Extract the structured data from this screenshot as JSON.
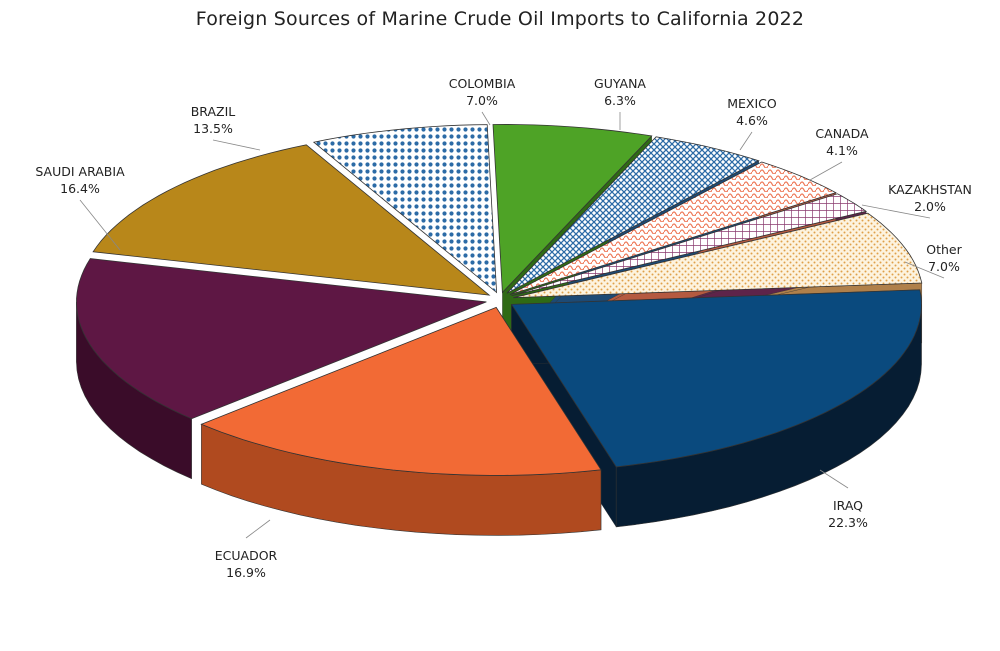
{
  "chart_data": {
    "type": "pie",
    "title": "Foreign Sources of Marine Crude Oil Imports to California 2022",
    "unit": "%",
    "slices": [
      {
        "label": "IRAQ",
        "value": 22.3,
        "value_text": "22.3%",
        "color": "#0a4a7e",
        "side": "#061d33",
        "fill": "solid"
      },
      {
        "label": "ECUADOR",
        "value": 16.9,
        "value_text": "16.9%",
        "color": "#f26a35",
        "side": "#b04a1f",
        "fill": "solid"
      },
      {
        "label": "SAUDI ARABIA",
        "value": 16.4,
        "value_text": "16.4%",
        "color": "#5e1744",
        "side": "#3a0c29",
        "fill": "solid"
      },
      {
        "label": "BRAZIL",
        "value": 13.5,
        "value_text": "13.5%",
        "color": "#b8871a",
        "side": "#7d5a0e",
        "fill": "solid"
      },
      {
        "label": "COLOMBIA",
        "value": 7.0,
        "value_text": "7.0%",
        "color": "#2c6ba6",
        "side": "#1d4a75",
        "fill": "dots"
      },
      {
        "label": "GUYANA",
        "value": 6.3,
        "value_text": "6.3%",
        "color": "#4ea326",
        "side": "#2f6a15",
        "fill": "solid"
      },
      {
        "label": "MEXICO",
        "value": 4.6,
        "value_text": "4.6%",
        "color": "#2c6ba6",
        "side": "#1d4a75",
        "fill": "crosshatch"
      },
      {
        "label": "CANADA",
        "value": 4.1,
        "value_text": "4.1%",
        "color": "#ee7a5a",
        "side": "#b55a40",
        "fill": "wave"
      },
      {
        "label": "KAZAKHSTAN",
        "value": 2.0,
        "value_text": "2.0%",
        "color": "#8a3a6e",
        "side": "#5e244a",
        "fill": "grid"
      },
      {
        "label": "Other",
        "value": 7.0,
        "value_text": "7.0%",
        "color": "#e8b060",
        "side": "#b0804a",
        "fill": "dotted-light"
      }
    ]
  }
}
